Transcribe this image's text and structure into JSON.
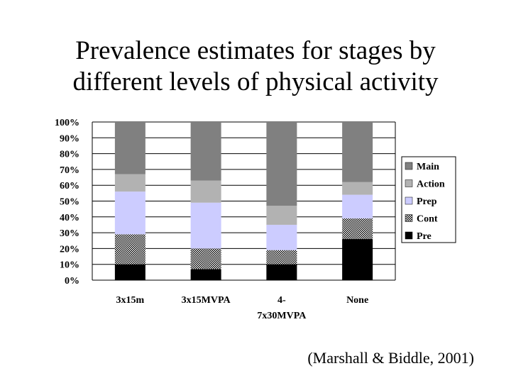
{
  "title_lines": [
    "Prevalence estimates for stages by",
    "different levels of physical activity"
  ],
  "citation": "(Marshall & Biddle, 2001)",
  "chart_data": {
    "type": "bar",
    "stacked": true,
    "categories": [
      "3x15m",
      "3x15MVPA",
      "4-7x30MVPA",
      "None"
    ],
    "category_label_lines": [
      [
        "3x15m"
      ],
      [
        "3x15MVPA"
      ],
      [
        "4-",
        "7x30MVPA"
      ],
      [
        "None"
      ]
    ],
    "yticks": [
      "0%",
      "10%",
      "20%",
      "30%",
      "40%",
      "50%",
      "60%",
      "70%",
      "80%",
      "90%",
      "100%"
    ],
    "ylim": [
      0,
      100
    ],
    "grid": true,
    "legend_position": "right",
    "series": [
      {
        "name": "Pre",
        "values": [
          10,
          7,
          10,
          26
        ],
        "color": "#000000",
        "pattern": "solid"
      },
      {
        "name": "Cont",
        "values": [
          19,
          13,
          9,
          13
        ],
        "color": "#888888",
        "pattern": "checker"
      },
      {
        "name": "Prep",
        "values": [
          27,
          29,
          16,
          15
        ],
        "color": "#ccccff",
        "pattern": "solid"
      },
      {
        "name": "Action",
        "values": [
          11,
          14,
          12,
          8
        ],
        "color": "#b2b2b2",
        "pattern": "solid"
      },
      {
        "name": "Main",
        "values": [
          33,
          37,
          53,
          38
        ],
        "color": "#808080",
        "pattern": "solid"
      }
    ]
  }
}
